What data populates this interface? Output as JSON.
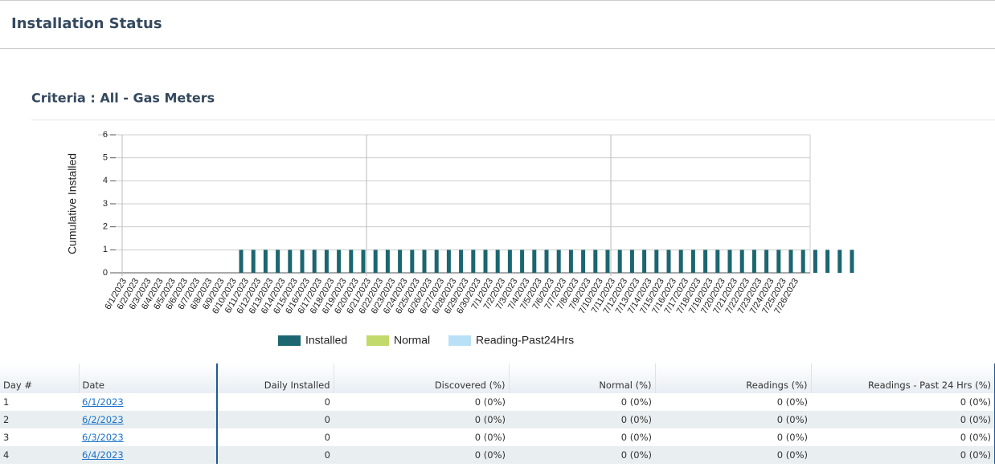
{
  "header": {
    "title": "Installation Status"
  },
  "criteria": "Criteria : All - Gas Meters",
  "chart_data": {
    "type": "bar",
    "y_label": "Cumulative Installed",
    "categories": [
      "6/1/2023",
      "6/2/2023",
      "6/3/2023",
      "6/4/2023",
      "6/5/2023",
      "6/6/2023",
      "6/7/2023",
      "6/8/2023",
      "6/9/2023",
      "6/10/2023",
      "6/11/2023",
      "6/12/2023",
      "6/13/2023",
      "6/14/2023",
      "6/15/2023",
      "6/16/2023",
      "6/17/2023",
      "6/18/2023",
      "6/19/2023",
      "6/20/2023",
      "6/21/2023",
      "6/22/2023",
      "6/23/2023",
      "6/24/2023",
      "6/25/2023",
      "6/26/2023",
      "6/27/2023",
      "6/28/2023",
      "6/29/2023",
      "6/30/2023",
      "7/1/2023",
      "7/2/2023",
      "7/3/2023",
      "7/4/2023",
      "7/5/2023",
      "7/6/2023",
      "7/7/2023",
      "7/8/2023",
      "7/9/2023",
      "7/10/2023",
      "7/11/2023",
      "7/12/2023",
      "7/13/2023",
      "7/14/2023",
      "7/15/2023",
      "7/16/2023",
      "7/17/2023",
      "7/18/2023",
      "7/19/2023",
      "7/20/2023",
      "7/21/2023",
      "7/22/2023",
      "7/23/2023",
      "7/24/2023",
      "7/25/2023",
      "7/26/2023"
    ],
    "series": [
      {
        "name": "Installed",
        "color": "#1b6670",
        "values": [
          0,
          0,
          0,
          0,
          0,
          1,
          1,
          1,
          1,
          1,
          1,
          1,
          1,
          1,
          1,
          1,
          1,
          1,
          1,
          1,
          1,
          1,
          1,
          1,
          1,
          1,
          1,
          1,
          1,
          1,
          1,
          1,
          1,
          1,
          1,
          1,
          1,
          1,
          1,
          1,
          1,
          1,
          1,
          1,
          1,
          1,
          1,
          1,
          1,
          1,
          1,
          1,
          1,
          1,
          1,
          1
        ]
      },
      {
        "name": "Normal",
        "color": "#c2d96b",
        "values": [
          0,
          0,
          0,
          0,
          0,
          0,
          0,
          0,
          0,
          0,
          0,
          0,
          0,
          0,
          0,
          0,
          0,
          0,
          0,
          0,
          0,
          0,
          0,
          0,
          0,
          0,
          0,
          0,
          0,
          0,
          0,
          0,
          0,
          0,
          0,
          0,
          0,
          0,
          0,
          0,
          0,
          0,
          0,
          0,
          0,
          0,
          0,
          0,
          0,
          0,
          0,
          0,
          0,
          0,
          0,
          0
        ]
      },
      {
        "name": "Reading-Past24Hrs",
        "color": "#b8e1f8",
        "values": [
          0,
          0,
          0,
          0,
          0,
          0,
          0,
          0,
          0,
          0,
          0,
          0,
          0,
          0,
          0,
          0,
          0,
          0,
          0,
          0,
          0,
          0,
          0,
          0,
          0,
          0,
          0,
          0,
          0,
          0,
          0,
          0,
          0,
          0,
          0,
          0,
          0,
          0,
          0,
          0,
          0,
          0,
          0,
          0,
          0,
          0,
          0,
          0,
          0,
          0,
          0,
          0,
          0,
          0,
          0,
          0
        ]
      }
    ],
    "ylim": [
      0,
      6
    ],
    "yticks": [
      0,
      1,
      2,
      3,
      4,
      5,
      6
    ],
    "grid": true,
    "legend": "bottom"
  },
  "table": {
    "columns": [
      "Day #",
      "Date",
      "Daily Installed",
      "Discovered (%)",
      "Normal (%)",
      "Readings (%)",
      "Readings - Past 24 Hrs (%)"
    ],
    "rows": [
      [
        1,
        "6/1/2023",
        0,
        "0 (0%)",
        "0 (0%)",
        "0 (0%)",
        "0 (0%)"
      ],
      [
        2,
        "6/2/2023",
        0,
        "0 (0%)",
        "0 (0%)",
        "0 (0%)",
        "0 (0%)"
      ],
      [
        3,
        "6/3/2023",
        0,
        "0 (0%)",
        "0 (0%)",
        "0 (0%)",
        "0 (0%)"
      ],
      [
        4,
        "6/4/2023",
        0,
        "0 (0%)",
        "0 (0%)",
        "0 (0%)",
        "0 (0%)"
      ]
    ]
  }
}
